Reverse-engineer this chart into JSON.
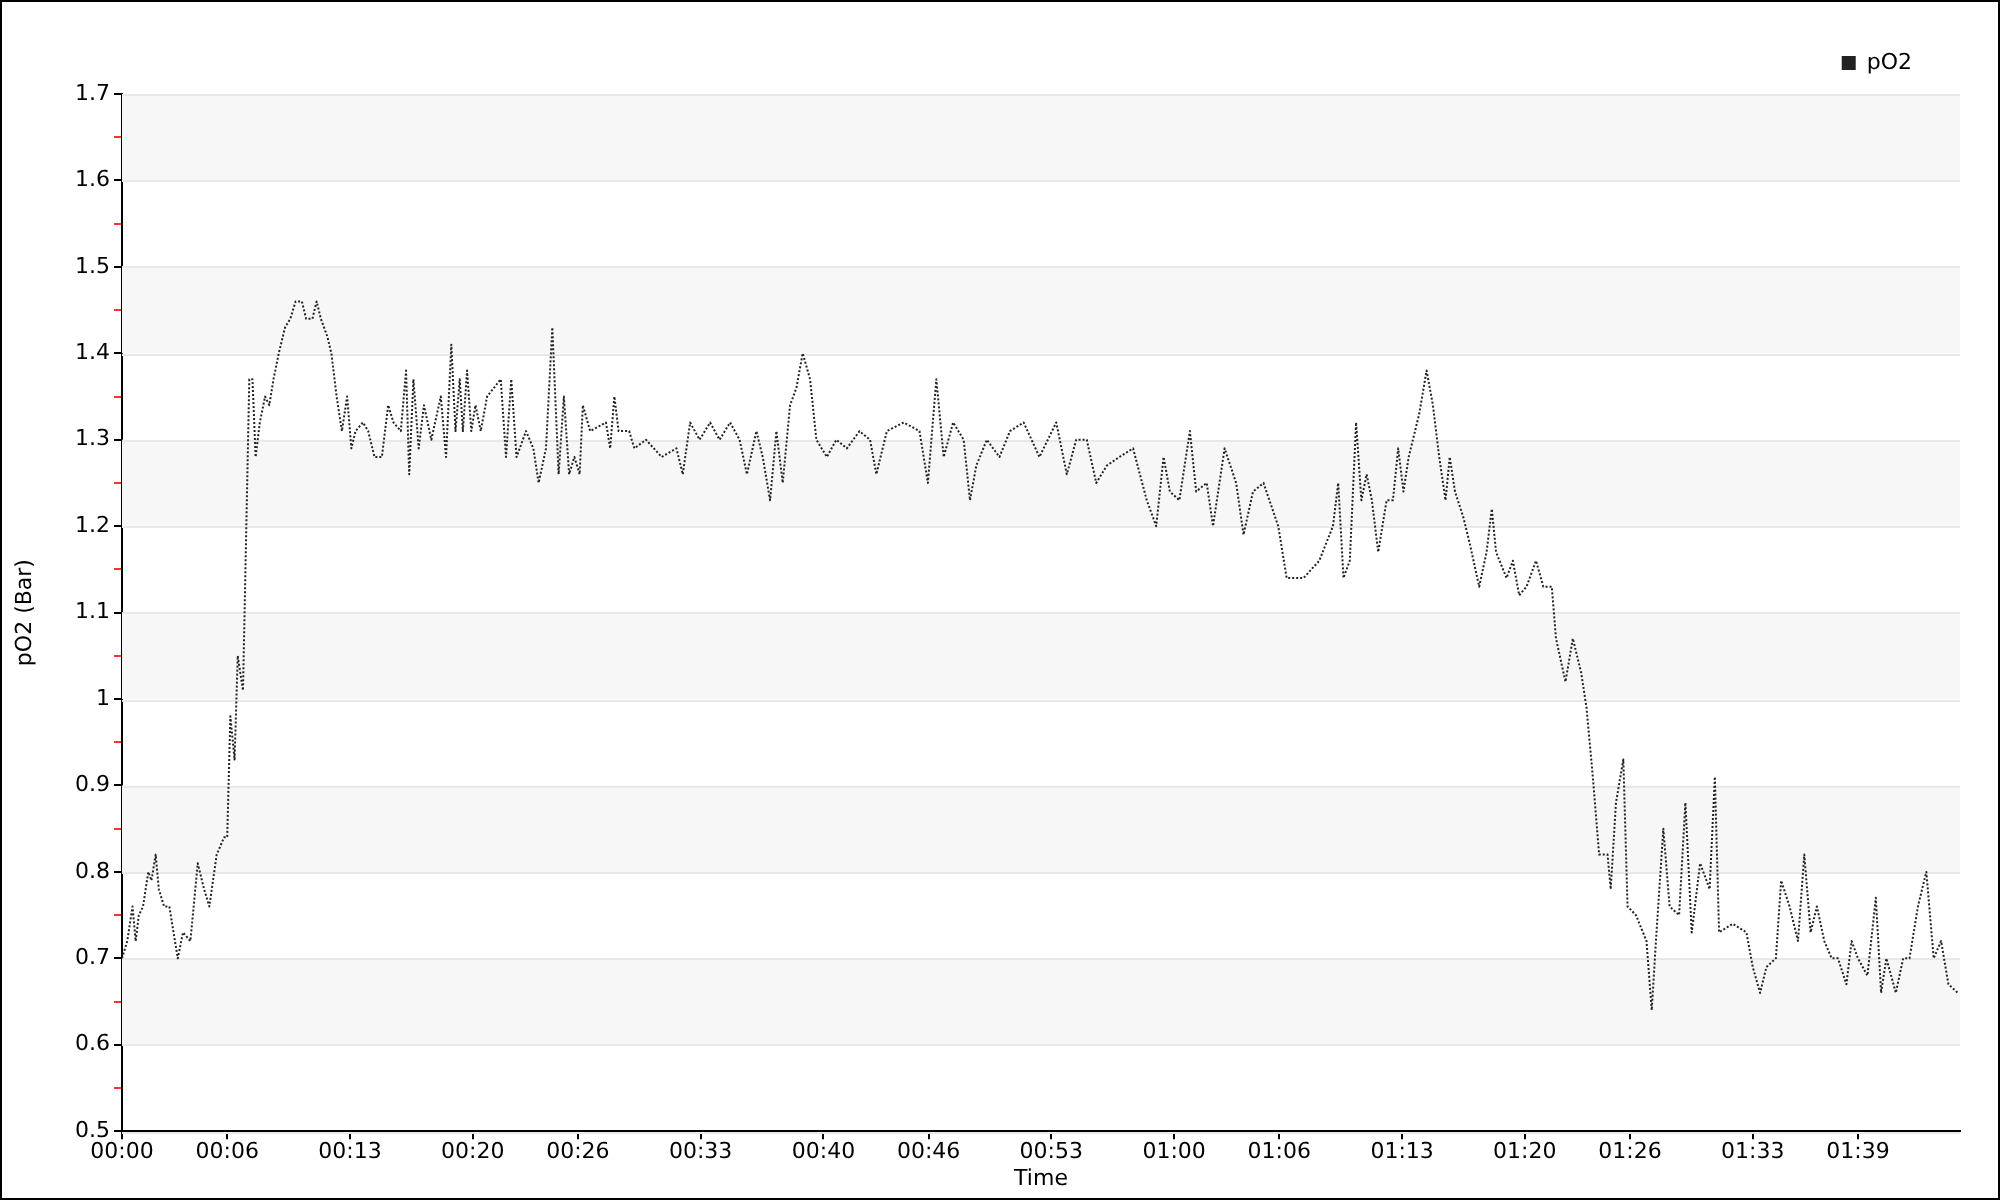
{
  "chart_data": {
    "type": "line",
    "xlabel": "Time",
    "ylabel": "pO2 (Bar)",
    "legend": "top right",
    "grid": "y",
    "marker": "none",
    "line_style": "dotted",
    "xlim": [
      0,
      1.747
    ],
    "ylim": [
      0.5,
      1.7
    ],
    "xticks": [
      {
        "value": 0,
        "label": "00:00"
      },
      {
        "value": 0.1,
        "label": "00:06"
      },
      {
        "value": 0.2167,
        "label": "00:13"
      },
      {
        "value": 0.3333,
        "label": "00:20"
      },
      {
        "value": 0.4333,
        "label": "00:26"
      },
      {
        "value": 0.55,
        "label": "00:33"
      },
      {
        "value": 0.6667,
        "label": "00:40"
      },
      {
        "value": 0.7667,
        "label": "00:46"
      },
      {
        "value": 0.8833,
        "label": "00:53"
      },
      {
        "value": 1,
        "label": "01:00"
      },
      {
        "value": 1.1,
        "label": "01:06"
      },
      {
        "value": 1.2167,
        "label": "01:13"
      },
      {
        "value": 1.3333,
        "label": "01:20"
      },
      {
        "value": 1.4333,
        "label": "01:26"
      },
      {
        "value": 1.55,
        "label": "01:33"
      },
      {
        "value": 1.65,
        "label": "01:39"
      }
    ],
    "yticks": [
      0.5,
      {
        "value": 0.55,
        "label": null
      },
      0.6,
      {
        "value": 0.65,
        "label": null
      },
      0.7,
      {
        "value": 0.75,
        "label": null
      },
      0.8,
      {
        "value": 0.85,
        "label": null
      },
      0.9,
      {
        "value": 0.95,
        "label": null
      },
      1,
      {
        "value": 1.05,
        "label": null
      },
      1.1,
      {
        "value": 1.15,
        "label": null
      },
      1.2,
      {
        "value": 1.25,
        "label": null
      },
      1.3,
      {
        "value": 1.35,
        "label": null
      },
      1.4,
      {
        "value": 1.45,
        "label": null
      },
      1.5,
      {
        "value": 1.55,
        "label": null
      },
      1.6,
      {
        "value": 1.65,
        "label": null
      },
      1.7
    ],
    "series": [
      {
        "name": "pO2",
        "color": "#222222",
        "x": [
          0,
          0.005,
          0.01,
          0.013,
          0.016,
          0.02,
          0.025,
          0.028,
          0.032,
          0.035,
          0.04,
          0.045,
          0.053,
          0.058,
          0.065,
          0.072,
          0.078,
          0.083,
          0.09,
          0.097,
          0.1,
          0.103,
          0.107,
          0.11,
          0.115,
          0.121,
          0.124,
          0.127,
          0.131,
          0.136,
          0.14,
          0.144,
          0.149,
          0.155,
          0.16,
          0.165,
          0.171,
          0.175,
          0.181,
          0.185,
          0.189,
          0.195,
          0.199,
          0.204,
          0.209,
          0.214,
          0.218,
          0.222,
          0.229,
          0.234,
          0.24,
          0.247,
          0.253,
          0.258,
          0.265,
          0.27,
          0.273,
          0.277,
          0.282,
          0.287,
          0.294,
          0.303,
          0.308,
          0.313,
          0.317,
          0.321,
          0.324,
          0.328,
          0.332,
          0.336,
          0.341,
          0.347,
          0.36,
          0.365,
          0.37,
          0.375,
          0.384,
          0.391,
          0.396,
          0.403,
          0.409,
          0.415,
          0.42,
          0.425,
          0.43,
          0.435,
          0.438,
          0.445,
          0.46,
          0.464,
          0.468,
          0.472,
          0.482,
          0.487,
          0.498,
          0.513,
          0.527,
          0.533,
          0.54,
          0.549,
          0.559,
          0.568,
          0.578,
          0.587,
          0.594,
          0.603,
          0.609,
          0.616,
          0.622,
          0.628,
          0.635,
          0.641,
          0.647,
          0.654,
          0.66,
          0.67,
          0.679,
          0.689,
          0.701,
          0.711,
          0.717,
          0.727,
          0.743,
          0.758,
          0.766,
          0.774,
          0.781,
          0.79,
          0.8,
          0.806,
          0.812,
          0.822,
          0.834,
          0.844,
          0.857,
          0.872,
          0.888,
          0.898,
          0.907,
          0.917,
          0.926,
          0.936,
          0.948,
          0.961,
          0.974,
          0.983,
          0.99,
          0.996,
          1.005,
          1.015,
          1.021,
          1.031,
          1.037,
          1.048,
          1.059,
          1.066,
          1.075,
          1.085,
          1.099,
          1.107,
          1.123,
          1.138,
          1.151,
          1.156,
          1.161,
          1.167,
          1.173,
          1.178,
          1.183,
          1.188,
          1.194,
          1.202,
          1.208,
          1.213,
          1.218,
          1.223,
          1.227,
          1.233,
          1.24,
          1.246,
          1.252,
          1.258,
          1.262,
          1.267,
          1.275,
          1.281,
          1.29,
          1.297,
          1.302,
          1.306,
          1.316,
          1.322,
          1.328,
          1.335,
          1.344,
          1.351,
          1.359,
          1.363,
          1.372,
          1.379,
          1.387,
          1.392,
          1.398,
          1.404,
          1.412,
          1.415,
          1.42,
          1.427,
          1.431,
          1.439,
          1.449,
          1.454,
          1.458,
          1.465,
          1.471,
          1.48,
          1.486,
          1.492,
          1.5,
          1.509,
          1.514,
          1.518,
          1.531,
          1.544,
          1.55,
          1.557,
          1.563,
          1.572,
          1.577,
          1.585,
          1.593,
          1.599,
          1.605,
          1.611,
          1.618,
          1.625,
          1.631,
          1.639,
          1.644,
          1.65,
          1.659,
          1.667,
          1.672,
          1.677,
          1.686,
          1.693,
          1.699,
          1.707,
          1.715,
          1.722,
          1.729,
          1.736,
          1.745
        ],
        "values": [
          0.7,
          0.72,
          0.76,
          0.72,
          0.75,
          0.76,
          0.8,
          0.79,
          0.82,
          0.78,
          0.76,
          0.76,
          0.7,
          0.73,
          0.72,
          0.81,
          0.78,
          0.76,
          0.82,
          0.84,
          0.84,
          0.98,
          0.93,
          1.05,
          1.01,
          1.37,
          1.37,
          1.28,
          1.32,
          1.35,
          1.34,
          1.37,
          1.4,
          1.43,
          1.44,
          1.46,
          1.46,
          1.44,
          1.44,
          1.46,
          1.44,
          1.42,
          1.4,
          1.35,
          1.31,
          1.35,
          1.29,
          1.31,
          1.32,
          1.31,
          1.28,
          1.28,
          1.34,
          1.32,
          1.31,
          1.38,
          1.26,
          1.37,
          1.29,
          1.34,
          1.3,
          1.35,
          1.28,
          1.41,
          1.31,
          1.37,
          1.31,
          1.38,
          1.31,
          1.34,
          1.31,
          1.35,
          1.37,
          1.28,
          1.37,
          1.28,
          1.31,
          1.29,
          1.25,
          1.29,
          1.43,
          1.26,
          1.35,
          1.26,
          1.28,
          1.26,
          1.34,
          1.31,
          1.32,
          1.29,
          1.35,
          1.31,
          1.31,
          1.29,
          1.3,
          1.28,
          1.29,
          1.26,
          1.32,
          1.3,
          1.32,
          1.3,
          1.32,
          1.3,
          1.26,
          1.31,
          1.28,
          1.23,
          1.31,
          1.25,
          1.34,
          1.36,
          1.4,
          1.37,
          1.3,
          1.28,
          1.3,
          1.29,
          1.31,
          1.3,
          1.26,
          1.31,
          1.32,
          1.31,
          1.25,
          1.37,
          1.28,
          1.32,
          1.3,
          1.23,
          1.27,
          1.3,
          1.28,
          1.31,
          1.32,
          1.28,
          1.32,
          1.26,
          1.3,
          1.3,
          1.25,
          1.27,
          1.28,
          1.29,
          1.23,
          1.2,
          1.28,
          1.24,
          1.23,
          1.31,
          1.24,
          1.25,
          1.2,
          1.29,
          1.25,
          1.19,
          1.24,
          1.25,
          1.2,
          1.14,
          1.14,
          1.16,
          1.2,
          1.25,
          1.14,
          1.16,
          1.32,
          1.23,
          1.26,
          1.23,
          1.17,
          1.23,
          1.23,
          1.29,
          1.24,
          1.28,
          1.3,
          1.33,
          1.38,
          1.34,
          1.28,
          1.23,
          1.28,
          1.24,
          1.21,
          1.18,
          1.13,
          1.17,
          1.22,
          1.17,
          1.14,
          1.16,
          1.12,
          1.13,
          1.16,
          1.13,
          1.13,
          1.07,
          1.02,
          1.07,
          1.03,
          0.99,
          0.91,
          0.82,
          0.82,
          0.78,
          0.88,
          0.93,
          0.76,
          0.75,
          0.72,
          0.64,
          0.72,
          0.85,
          0.76,
          0.75,
          0.88,
          0.73,
          0.81,
          0.78,
          0.91,
          0.73,
          0.74,
          0.73,
          0.69,
          0.66,
          0.69,
          0.7,
          0.79,
          0.76,
          0.72,
          0.82,
          0.73,
          0.76,
          0.72,
          0.7,
          0.7,
          0.67,
          0.72,
          0.7,
          0.68,
          0.77,
          0.66,
          0.7,
          0.66,
          0.7,
          0.7,
          0.76,
          0.8,
          0.7,
          0.72,
          0.67,
          0.66
        ]
      }
    ]
  }
}
